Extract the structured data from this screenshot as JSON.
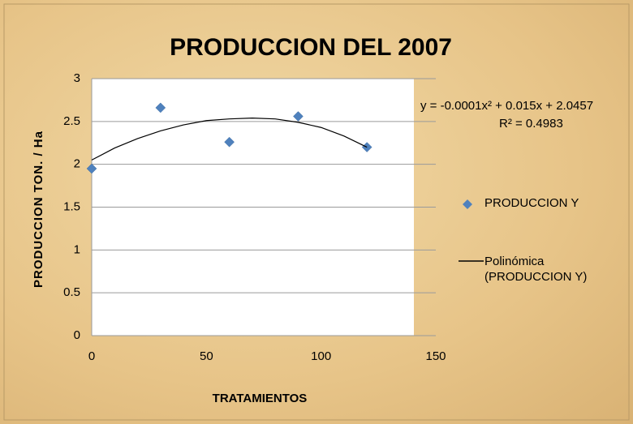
{
  "chart_data": {
    "type": "scatter",
    "title": "PRODUCCION DEL 2007",
    "xlabel": "TRATAMIENTOS",
    "ylabel": "PRODUCCION TON. / Ha",
    "x": [
      0,
      30,
      60,
      90,
      120
    ],
    "series": [
      {
        "name": "PRODUCCION Y",
        "color": "#4f81bd",
        "values": [
          1.95,
          2.66,
          2.26,
          2.56,
          2.2
        ]
      },
      {
        "name": "Polinómica (PRODUCCION Y)",
        "color": "#000000",
        "type": "line",
        "x": [
          0,
          10,
          20,
          30,
          40,
          50,
          60,
          70,
          80,
          90,
          100,
          110,
          120
        ],
        "values": [
          2.05,
          2.19,
          2.3,
          2.39,
          2.46,
          2.51,
          2.53,
          2.54,
          2.53,
          2.49,
          2.43,
          2.33,
          2.2
        ]
      }
    ],
    "annotations": [
      "y = -0.0001x² + 0.015x + 2.0457",
      "R² = 0.4983"
    ],
    "xlim": [
      0,
      150
    ],
    "xticks": [
      0,
      50,
      100,
      150
    ],
    "ylim": [
      0,
      3
    ],
    "yticks": [
      0,
      0.5,
      1,
      1.5,
      2,
      2.5,
      3
    ],
    "grid": true,
    "legend": "right"
  }
}
